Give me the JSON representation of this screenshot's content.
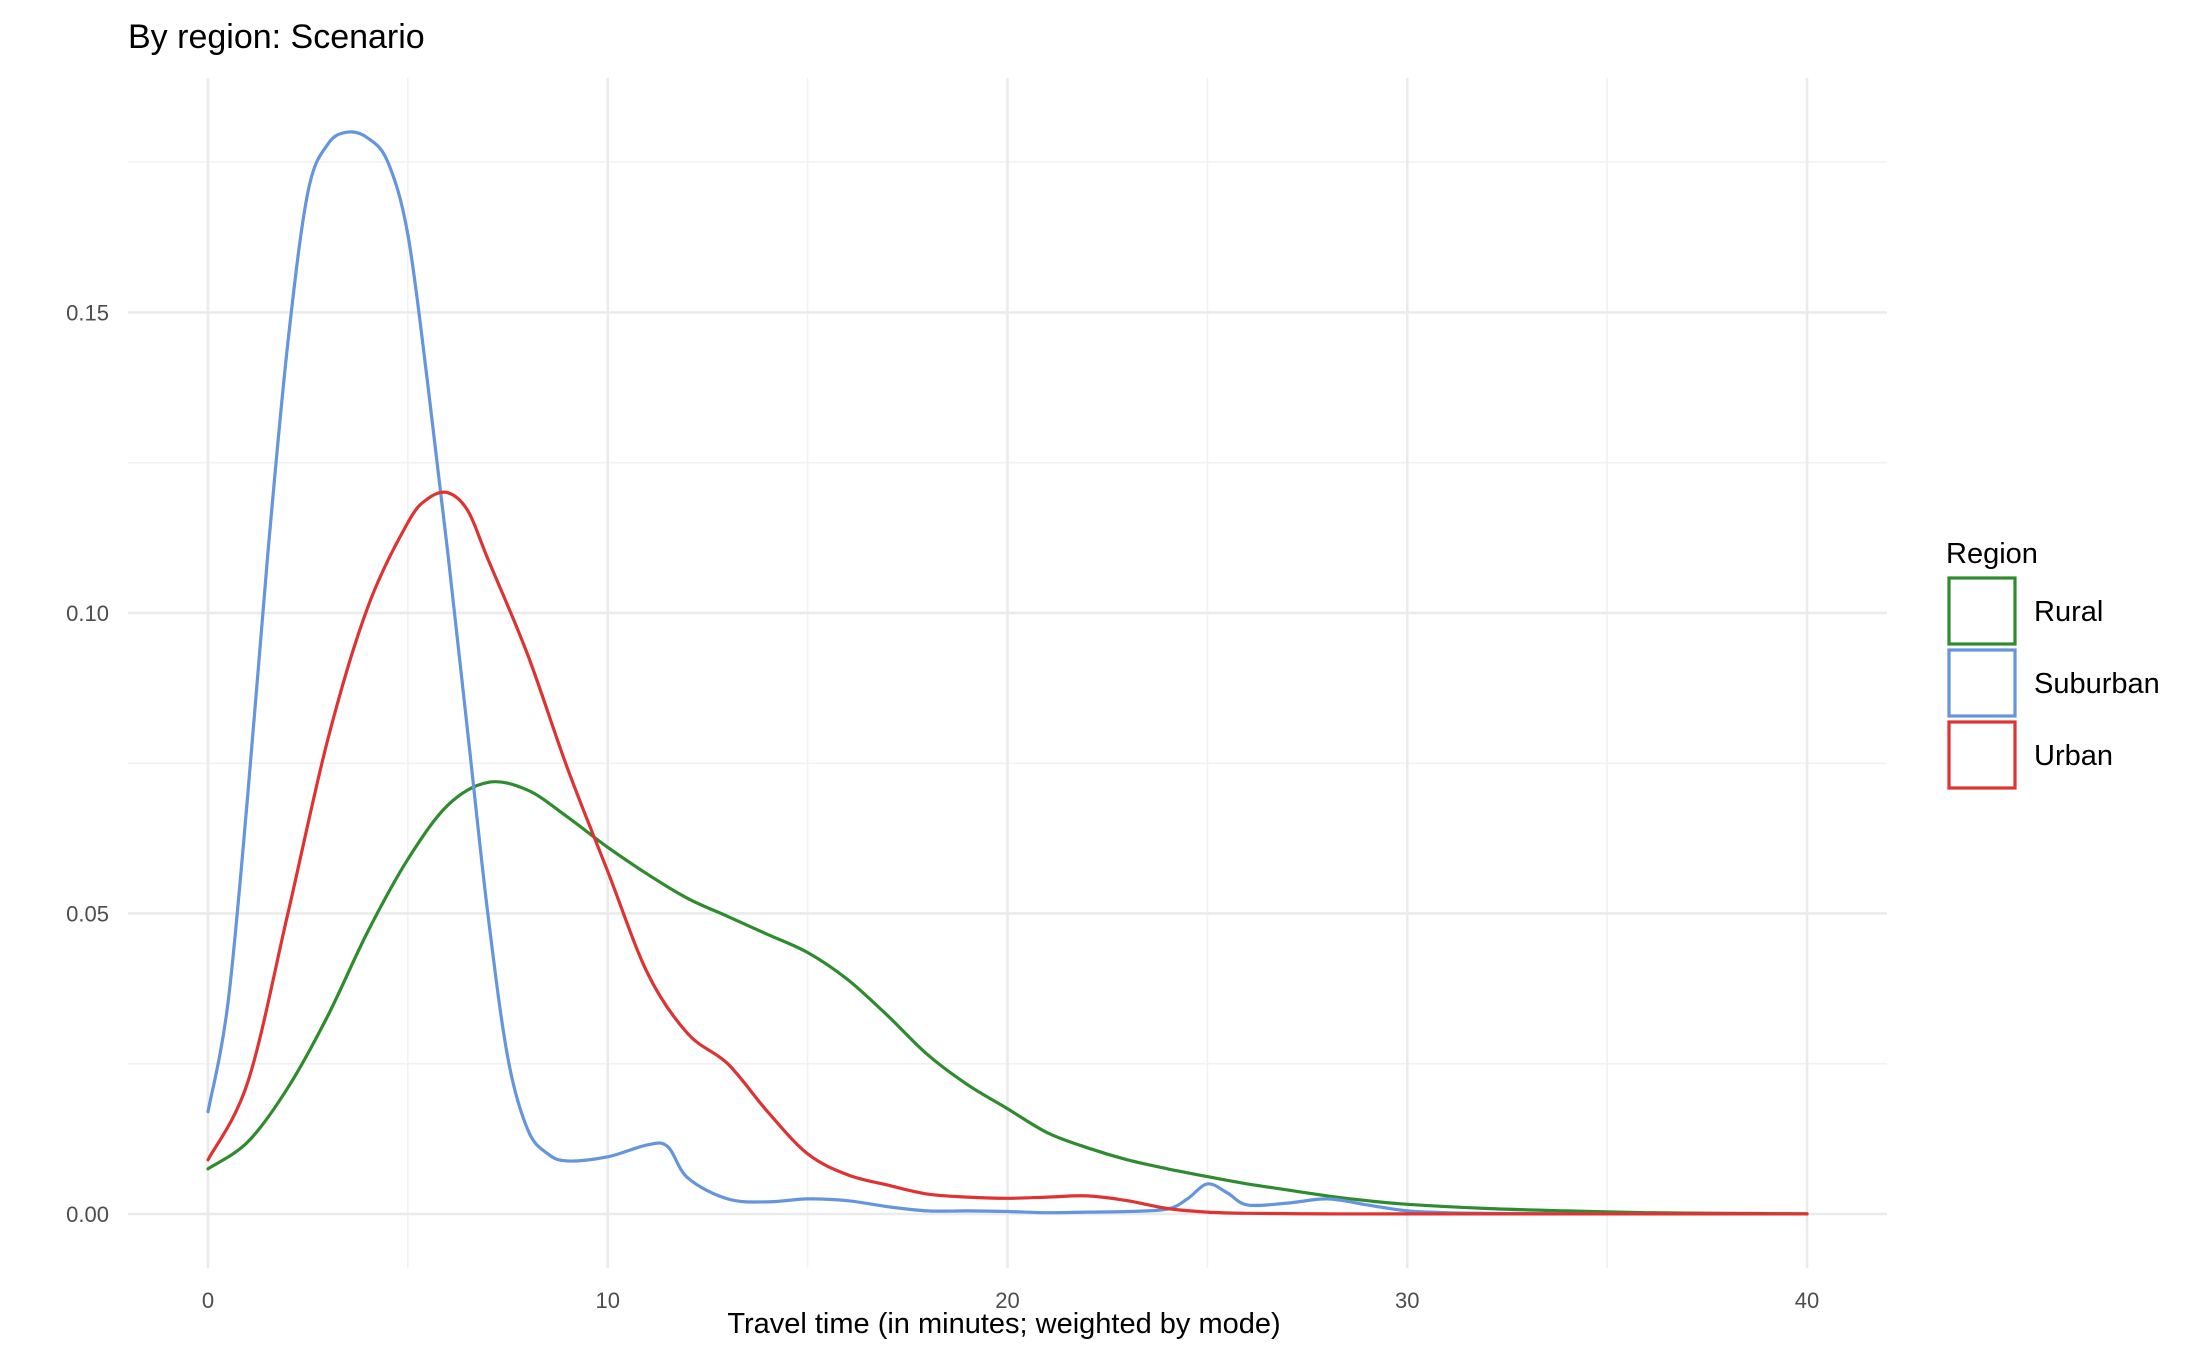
{
  "chart_data": {
    "type": "line",
    "title": "By region: Scenario",
    "xlabel": "Travel time (in minutes; weighted by mode)",
    "ylabel": "",
    "xlim": [
      -2,
      42
    ],
    "ylim": [
      -0.009,
      0.189
    ],
    "x_ticks": [
      0,
      10,
      20,
      30,
      40
    ],
    "x_tick_labels": [
      "0",
      "10",
      "20",
      "30",
      "40"
    ],
    "y_ticks": [
      0,
      0.05,
      0.1,
      0.15
    ],
    "y_tick_labels": [
      "0.00",
      "0.05",
      "0.10",
      "0.15"
    ],
    "grid": true,
    "legend": {
      "title": "Region",
      "position": "right"
    },
    "series": [
      {
        "name": "Rural",
        "color": "#2e8b2e",
        "points": [
          [
            0,
            0.0075
          ],
          [
            1,
            0.012
          ],
          [
            2,
            0.021
          ],
          [
            3,
            0.033
          ],
          [
            4,
            0.047
          ],
          [
            5,
            0.059
          ],
          [
            6,
            0.068
          ],
          [
            7,
            0.0718
          ],
          [
            8,
            0.0705
          ],
          [
            9,
            0.066
          ],
          [
            10,
            0.061
          ],
          [
            11,
            0.0565
          ],
          [
            12,
            0.0525
          ],
          [
            13,
            0.0495
          ],
          [
            14,
            0.0465
          ],
          [
            15,
            0.0435
          ],
          [
            16,
            0.039
          ],
          [
            17,
            0.033
          ],
          [
            18,
            0.0265
          ],
          [
            19,
            0.0215
          ],
          [
            20,
            0.0175
          ],
          [
            21,
            0.0135
          ],
          [
            22,
            0.011
          ],
          [
            23,
            0.009
          ],
          [
            24,
            0.0075
          ],
          [
            25,
            0.0062
          ],
          [
            26,
            0.005
          ],
          [
            27,
            0.004
          ],
          [
            28,
            0.003
          ],
          [
            29,
            0.0022
          ],
          [
            30,
            0.0016
          ],
          [
            32,
            0.0009
          ],
          [
            34,
            0.0005
          ],
          [
            36,
            0.0002
          ],
          [
            38,
            0.0001
          ],
          [
            40,
            0.0
          ]
        ]
      },
      {
        "name": "Suburban",
        "color": "#6495dd",
        "points": [
          [
            0,
            0.017
          ],
          [
            0.5,
            0.035
          ],
          [
            1,
            0.07
          ],
          [
            1.5,
            0.11
          ],
          [
            2,
            0.145
          ],
          [
            2.5,
            0.17
          ],
          [
            3,
            0.178
          ],
          [
            3.5,
            0.18
          ],
          [
            4,
            0.179
          ],
          [
            4.5,
            0.175
          ],
          [
            5,
            0.163
          ],
          [
            5.5,
            0.138
          ],
          [
            6,
            0.11
          ],
          [
            6.5,
            0.08
          ],
          [
            7,
            0.05
          ],
          [
            7.5,
            0.026
          ],
          [
            8,
            0.014
          ],
          [
            8.5,
            0.01
          ],
          [
            9,
            0.0088
          ],
          [
            10,
            0.0095
          ],
          [
            11,
            0.0115
          ],
          [
            11.5,
            0.0112
          ],
          [
            12,
            0.006
          ],
          [
            13,
            0.0025
          ],
          [
            14,
            0.002
          ],
          [
            15,
            0.0025
          ],
          [
            16,
            0.0022
          ],
          [
            17,
            0.0012
          ],
          [
            18,
            0.0005
          ],
          [
            19,
            0.0005
          ],
          [
            20,
            0.0004
          ],
          [
            21,
            0.0002
          ],
          [
            22,
            0.0003
          ],
          [
            23,
            0.0004
          ],
          [
            24,
            0.0008
          ],
          [
            24.5,
            0.0025
          ],
          [
            25,
            0.005
          ],
          [
            25.5,
            0.0035
          ],
          [
            26,
            0.0015
          ],
          [
            27,
            0.0018
          ],
          [
            28,
            0.0025
          ],
          [
            29,
            0.0015
          ],
          [
            30,
            0.0005
          ],
          [
            31,
            0.0002
          ],
          [
            32,
            0.0001
          ],
          [
            34,
            0.0
          ],
          [
            36,
            0.0
          ]
        ]
      },
      {
        "name": "Urban",
        "color": "#dd3333",
        "points": [
          [
            0,
            0.009
          ],
          [
            1,
            0.022
          ],
          [
            2,
            0.05
          ],
          [
            3,
            0.079
          ],
          [
            4,
            0.101
          ],
          [
            5,
            0.115
          ],
          [
            5.5,
            0.119
          ],
          [
            6,
            0.12
          ],
          [
            6.5,
            0.117
          ],
          [
            7,
            0.109
          ],
          [
            8,
            0.093
          ],
          [
            9,
            0.074
          ],
          [
            10,
            0.057
          ],
          [
            11,
            0.04
          ],
          [
            12,
            0.03
          ],
          [
            13,
            0.025
          ],
          [
            14,
            0.017
          ],
          [
            15,
            0.01
          ],
          [
            16,
            0.0065
          ],
          [
            17,
            0.0048
          ],
          [
            18,
            0.0033
          ],
          [
            19,
            0.0028
          ],
          [
            20,
            0.0026
          ],
          [
            21,
            0.0028
          ],
          [
            22,
            0.003
          ],
          [
            23,
            0.0022
          ],
          [
            24,
            0.0009
          ],
          [
            25,
            0.0003
          ],
          [
            26,
            0.0001
          ],
          [
            28,
            0.0
          ],
          [
            30,
            0.0
          ],
          [
            35,
            0.0
          ],
          [
            40,
            0.0
          ]
        ]
      }
    ]
  }
}
